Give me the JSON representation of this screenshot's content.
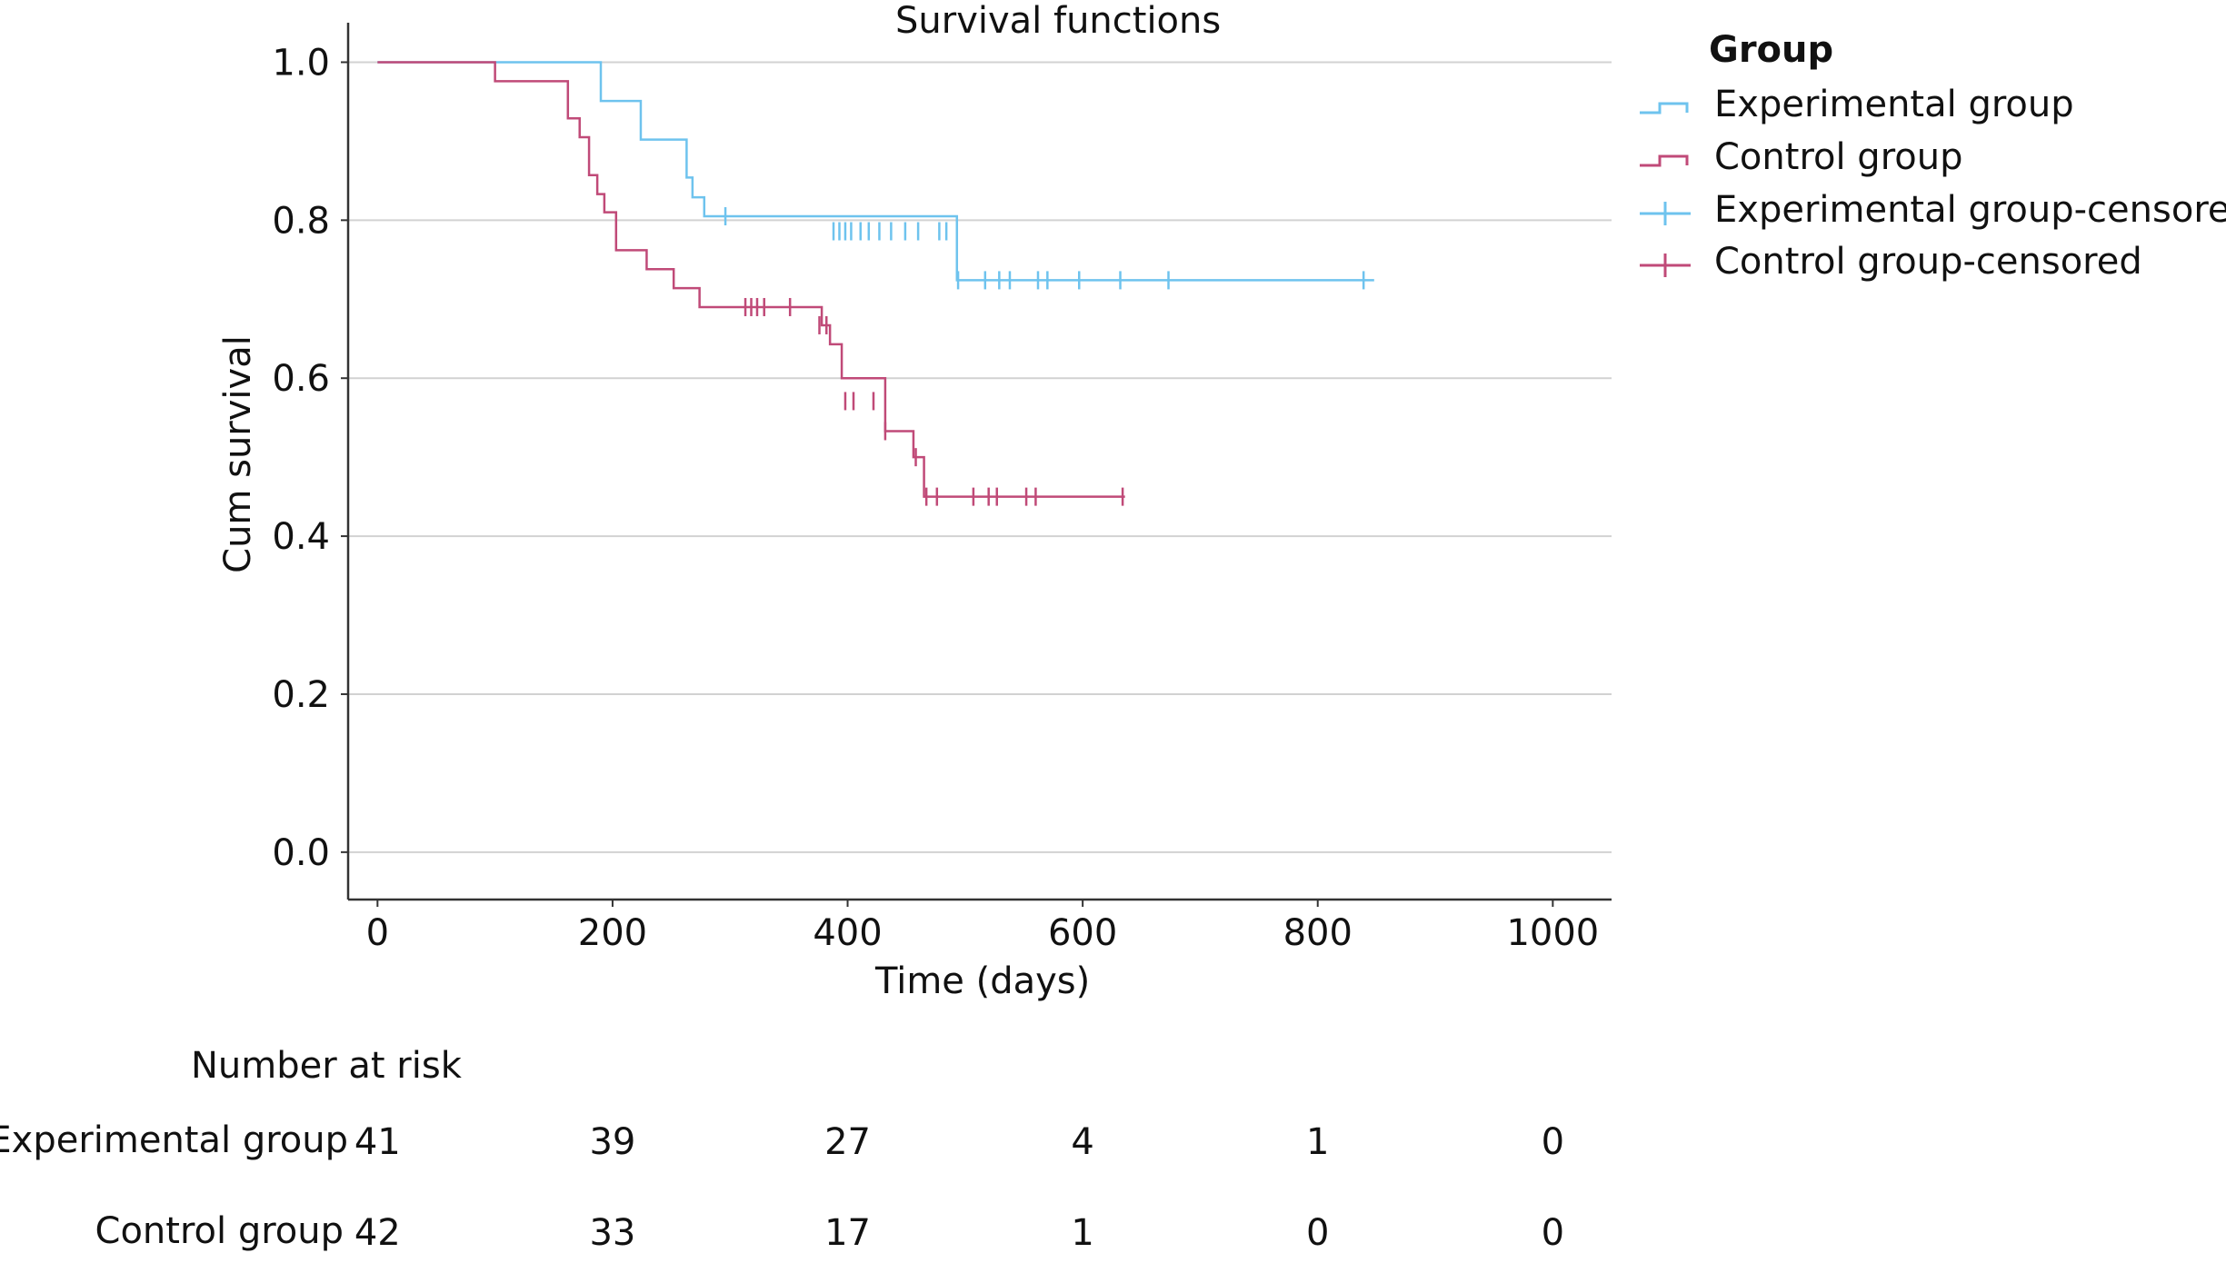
{
  "chart_data": {
    "type": "line",
    "title": "Survival functions",
    "xlabel": "Time (days)",
    "ylabel": "Cum survival",
    "xlim": [
      -25,
      1050
    ],
    "ylim": [
      -0.06,
      1.05
    ],
    "xticks": [
      "0",
      "200",
      "400",
      "600",
      "800",
      "1000"
    ],
    "xtick_values": [
      0,
      200,
      400,
      600,
      800,
      1000
    ],
    "yticks": [
      "0.0",
      "0.2",
      "0.4",
      "0.6",
      "0.8",
      "1.0"
    ],
    "ytick_values": [
      0,
      0.2,
      0.4,
      0.6,
      0.8,
      1.0
    ],
    "grid": "horizontal",
    "legend_position": "top-right",
    "legend_title": "Group",
    "series": [
      {
        "name": "Experimental group",
        "color": "#6ec3ee",
        "step_x": [
          0,
          184,
          190,
          224,
          263,
          268,
          278,
          287,
          493,
          848
        ],
        "step_y": [
          1.0,
          1.0,
          0.951,
          0.902,
          0.854,
          0.829,
          0.805,
          0.805,
          0.724,
          0.724
        ],
        "censored_x": [
          296,
          388,
          393,
          398,
          403,
          411,
          418,
          427,
          437,
          449,
          460,
          478,
          484,
          494,
          517,
          529,
          538,
          562,
          570,
          597,
          632,
          673,
          839
        ],
        "censored_y": [
          0.805,
          0.786,
          0.786,
          0.786,
          0.786,
          0.786,
          0.786,
          0.786,
          0.786,
          0.786,
          0.786,
          0.786,
          0.786,
          0.724,
          0.724,
          0.724,
          0.724,
          0.724,
          0.724,
          0.724,
          0.724,
          0.724,
          0.724
        ]
      },
      {
        "name": "Control group",
        "color": "#c04a78",
        "step_x": [
          0,
          100,
          162,
          172,
          180,
          187,
          193,
          203,
          229,
          252,
          274,
          370,
          378,
          385,
          395,
          425,
          432,
          456,
          465,
          636
        ],
        "step_y": [
          1.0,
          0.976,
          0.929,
          0.905,
          0.857,
          0.833,
          0.81,
          0.762,
          0.738,
          0.714,
          0.69,
          0.69,
          0.667,
          0.643,
          0.6,
          0.6,
          0.533,
          0.5,
          0.45,
          0.45
        ],
        "censored_x": [
          313,
          318,
          323,
          329,
          351,
          376,
          382,
          398,
          405,
          422,
          432,
          458,
          467,
          476,
          507,
          520,
          527,
          552,
          560,
          634
        ],
        "censored_y": [
          0.69,
          0.69,
          0.69,
          0.69,
          0.69,
          0.667,
          0.667,
          0.571,
          0.571,
          0.571,
          0.533,
          0.5,
          0.45,
          0.45,
          0.45,
          0.45,
          0.45,
          0.45,
          0.45,
          0.45
        ]
      }
    ],
    "legend": [
      {
        "label": "Experimental group",
        "kind": "step",
        "color": "#6ec3ee"
      },
      {
        "label": "Control group",
        "kind": "step",
        "color": "#c04a78"
      },
      {
        "label": "Experimental group-censored",
        "kind": "censor",
        "color": "#6ec3ee"
      },
      {
        "label": "Control group-censored",
        "kind": "censor",
        "color": "#c04a78"
      }
    ],
    "number_at_risk": {
      "title": "Number at risk",
      "rows": [
        {
          "label": "Experimental group",
          "values": [
            "41",
            "39",
            "27",
            "4",
            "1",
            "0"
          ]
        },
        {
          "label": "Control group",
          "values": [
            "42",
            "33",
            "17",
            "1",
            "0",
            "0"
          ]
        }
      ]
    }
  }
}
